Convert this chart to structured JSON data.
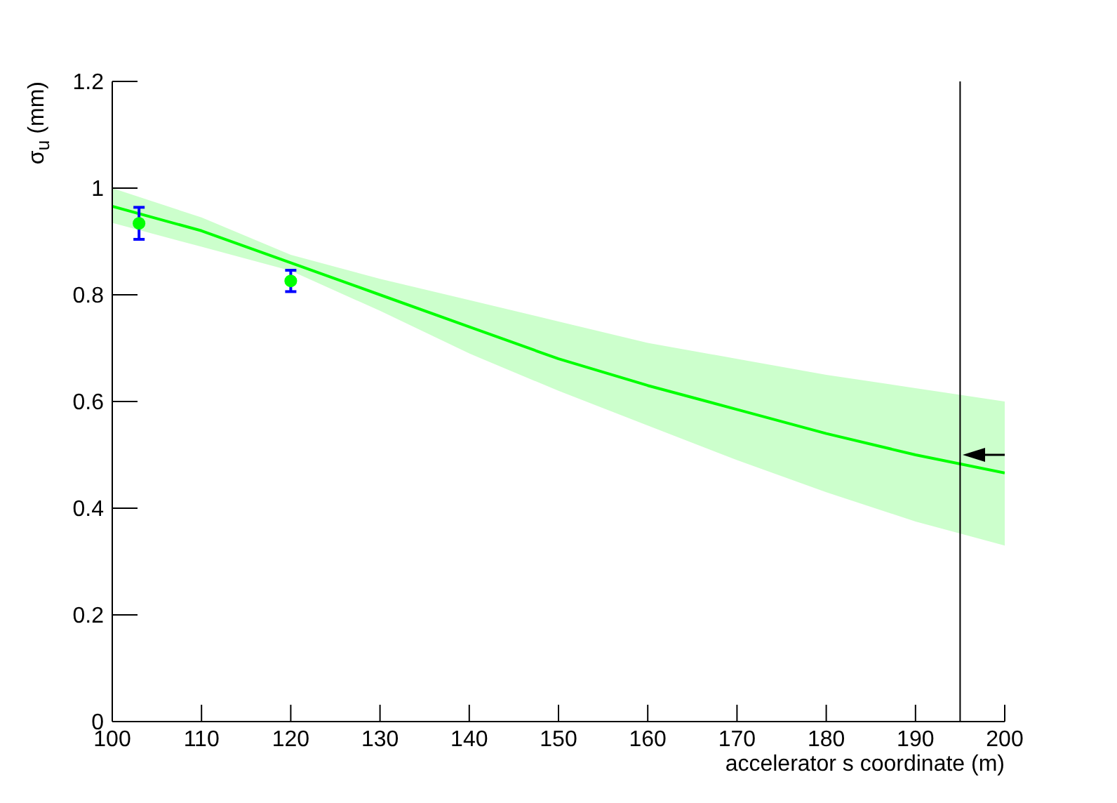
{
  "chart_data": {
    "type": "line",
    "xlabel": "accelerator s coordinate (m)",
    "ylabel": "σ$_{u}$ (mm)",
    "xlim": [
      100,
      200
    ],
    "xticks": [
      100,
      110,
      120,
      130,
      140,
      150,
      160,
      170,
      180,
      190,
      200
    ],
    "ylim": [
      0,
      1.2
    ],
    "yticks": [
      0,
      0.2,
      0.4,
      0.6,
      0.8,
      1,
      1.2
    ],
    "series": [
      {
        "color": "#00ff00",
        "marker": "none",
        "x": [
          100,
          110,
          120,
          130,
          140,
          150,
          160,
          170,
          180,
          190,
          200
        ],
        "values": [
          0.966,
          0.92,
          0.86,
          0.8,
          0.74,
          0.68,
          0.63,
          0.585,
          0.54,
          0.5,
          0.466
        ],
        "lower": [
          0.935,
          0.89,
          0.845,
          0.77,
          0.69,
          0.62,
          0.555,
          0.49,
          0.43,
          0.375,
          0.33
        ],
        "upper": [
          1,
          0.945,
          0.875,
          0.83,
          0.79,
          0.75,
          0.71,
          0.68,
          0.65,
          0.625,
          0.6
        ]
      },
      {
        "type": "scatter",
        "color": "#00ff00",
        "marker": "circle",
        "x": [
          103,
          120
        ],
        "values": [
          0.934,
          0.826
        ],
        "errors": [
          0.03,
          0.02
        ]
      }
    ],
    "ref_lines": [
      {
        "axis": "x",
        "value": 195,
        "color": "#000000"
      }
    ]
  }
}
